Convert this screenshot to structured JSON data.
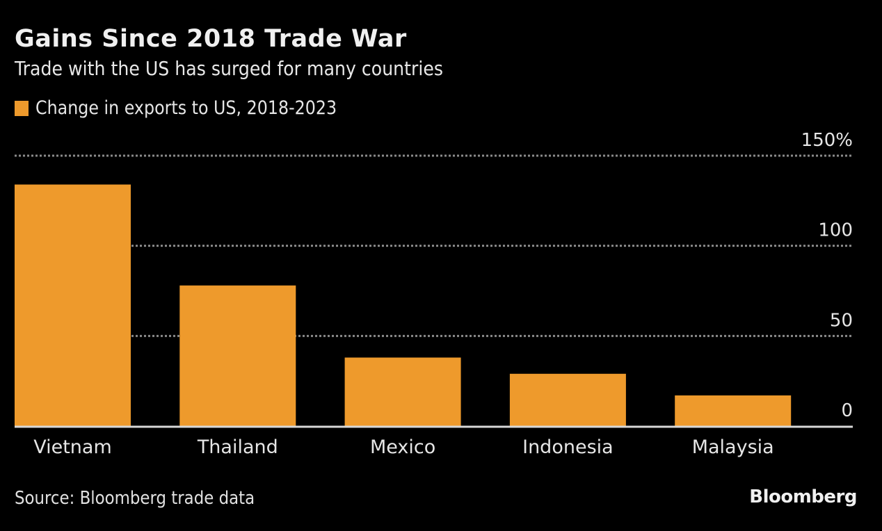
{
  "chart_data": {
    "type": "bar",
    "title": "Gains Since 2018 Trade War",
    "subtitle": "Trade with the US has surged for many countries",
    "legend": [
      {
        "label": "Change in exports to US, 2018-2023",
        "color": "#ee9a2c"
      }
    ],
    "legend_position": "top-left",
    "categories": [
      "Vietnam",
      "Thailand",
      "Mexico",
      "Indonesia",
      "Malaysia"
    ],
    "series": [
      {
        "name": "Change in exports to US, 2018-2023",
        "values": [
          134,
          78,
          38,
          29,
          17
        ],
        "color": "#ee9a2c"
      }
    ],
    "xlabel": "",
    "ylabel": "",
    "ylim": [
      0,
      150
    ],
    "yticks": [
      0,
      50,
      100,
      150
    ],
    "ytick_labels": [
      "0",
      "50",
      "100",
      "150%"
    ],
    "y_axis_side": "right",
    "grid": true,
    "grid_style": "dotted",
    "source": "Source: Bloomberg trade data",
    "brand": "Bloomberg"
  },
  "colors": {
    "background": "#000000",
    "bar": "#ee9a2c",
    "grid": "#8a8a8a",
    "baseline": "#d8d8d8",
    "text": "#e6e6e6"
  }
}
